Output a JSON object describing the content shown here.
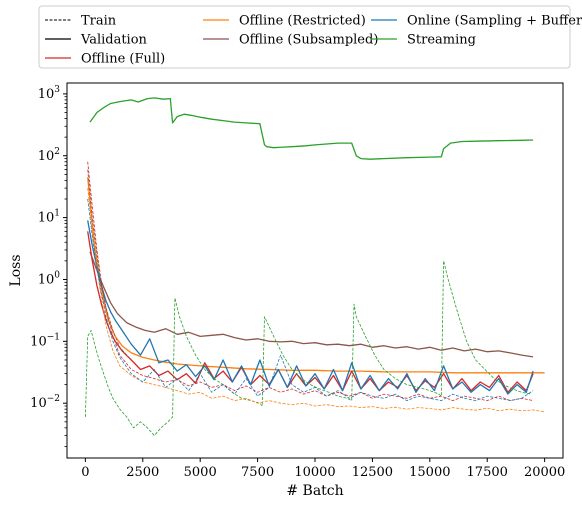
{
  "chart_data": {
    "type": "line",
    "title": "",
    "xlabel": "# Batch",
    "ylabel": "Loss",
    "xlim": [
      -800,
      20800
    ],
    "ylim": [
      0.0013,
      1500
    ],
    "yscale": "log",
    "x_ticks": [
      0,
      2500,
      5000,
      7500,
      10000,
      12500,
      15000,
      17500,
      20000
    ],
    "x_tick_labels": [
      "0",
      "2500",
      "5000",
      "7500",
      "10000",
      "12500",
      "15000",
      "17500",
      "20000"
    ],
    "y_ticks": [
      0.01,
      0.1,
      1,
      10,
      100,
      1000
    ],
    "y_tick_labels": [
      {
        "base": "10",
        "exp": "−2"
      },
      {
        "base": "10",
        "exp": "−1"
      },
      {
        "base": "10",
        "exp": "0"
      },
      {
        "base": "10",
        "exp": "1"
      },
      {
        "base": "10",
        "exp": "2"
      },
      {
        "base": "10",
        "exp": "3"
      }
    ],
    "grid": false,
    "legend_position": "top",
    "legend": [
      {
        "label": "Train",
        "color": "#000000",
        "style": "dashed"
      },
      {
        "label": "Validation",
        "color": "#000000",
        "style": "solid"
      },
      {
        "label": "Offline (Full)",
        "color": "#d62728",
        "style": "solid"
      },
      {
        "label": "Offline (Restricted)",
        "color": "#ff7f0e",
        "style": "solid"
      },
      {
        "label": "Offline (Subsampled)",
        "color": "#8c564b",
        "style": "solid"
      },
      {
        "label": "Streaming",
        "color": "#2ca02c",
        "style": "solid"
      },
      {
        "label": "Online (Sampling + Buffer)",
        "color": "#1f77b4",
        "style": "solid"
      }
    ],
    "series": [
      {
        "name": "Streaming",
        "kind": "validation",
        "color": "#2ca02c",
        "x": [
          200,
          500,
          800,
          1100,
          1500,
          2000,
          2300,
          2700,
          3000,
          3400,
          3700,
          3800,
          4000,
          4300,
          4600,
          5000,
          5500,
          6000,
          6500,
          7000,
          7600,
          7800,
          7900,
          8200,
          8600,
          9000,
          9600,
          10000,
          10500,
          11000,
          11600,
          11800,
          12000,
          12400,
          13000,
          14000,
          15000,
          15500,
          15600,
          15900,
          16400,
          17000,
          18000,
          19000,
          19500
        ],
        "y": [
          350,
          500,
          600,
          700,
          750,
          800,
          740,
          840,
          860,
          820,
          840,
          340,
          430,
          470,
          450,
          420,
          390,
          370,
          350,
          340,
          330,
          150,
          140,
          135,
          138,
          140,
          145,
          150,
          155,
          160,
          160,
          100,
          90,
          88,
          90,
          93,
          95,
          96,
          130,
          160,
          170,
          172,
          175,
          178,
          180
        ]
      },
      {
        "name": "Offline (Subsampled)",
        "kind": "validation",
        "color": "#8c564b",
        "x": [
          200,
          500,
          800,
          1100,
          1400,
          1800,
          2200,
          2600,
          3000,
          3500,
          4000,
          4500,
          5000,
          5500,
          6000,
          6500,
          7000,
          7500,
          8000,
          8500,
          9000,
          9500,
          10000,
          10500,
          11000,
          11500,
          12000,
          12500,
          13000,
          13500,
          14000,
          14500,
          15000,
          15500,
          16000,
          16500,
          17000,
          17500,
          18000,
          18500,
          19000,
          19500
        ],
        "y": [
          2.8,
          1.4,
          0.75,
          0.42,
          0.28,
          0.2,
          0.17,
          0.15,
          0.14,
          0.16,
          0.13,
          0.14,
          0.12,
          0.125,
          0.13,
          0.115,
          0.105,
          0.11,
          0.1,
          0.098,
          0.1,
          0.092,
          0.095,
          0.088,
          0.09,
          0.085,
          0.09,
          0.08,
          0.085,
          0.078,
          0.082,
          0.075,
          0.08,
          0.072,
          0.078,
          0.07,
          0.075,
          0.068,
          0.07,
          0.065,
          0.06,
          0.056
        ]
      },
      {
        "name": "Offline (Restricted)",
        "kind": "validation",
        "color": "#ff7f0e",
        "x": [
          100,
          250,
          400,
          600,
          800,
          1000,
          1300,
          1600,
          2000,
          2500,
          3000,
          3500,
          4000,
          5000,
          6000,
          7000,
          8000,
          9000,
          10000,
          11000,
          12000,
          13000,
          14000,
          15000,
          16000,
          17000,
          18000,
          19000,
          20000
        ],
        "y": [
          45,
          12,
          3.5,
          1.1,
          0.45,
          0.22,
          0.12,
          0.085,
          0.065,
          0.055,
          0.05,
          0.046,
          0.043,
          0.04,
          0.038,
          0.036,
          0.035,
          0.034,
          0.034,
          0.033,
          0.033,
          0.032,
          0.032,
          0.032,
          0.031,
          0.031,
          0.031,
          0.031,
          0.031
        ]
      },
      {
        "name": "Offline (Full)",
        "kind": "validation",
        "color": "#d62728",
        "x": [
          100,
          300,
          500,
          700,
          900,
          1100,
          1300,
          1600,
          2000,
          2400,
          2800,
          3200,
          3600,
          4000,
          4400,
          4800,
          5200,
          5600,
          6000,
          6400,
          6800,
          7200,
          7600,
          8000,
          8400,
          8800,
          9200,
          9600,
          10000,
          10400,
          10800,
          11200,
          11600,
          12000,
          12400,
          12800,
          13200,
          13600,
          14000,
          14400,
          14800,
          15200,
          15600,
          16000,
          16400,
          16800,
          17200,
          17600,
          18000,
          18400,
          18800,
          19200,
          19500
        ],
        "y": [
          6,
          2.0,
          0.8,
          0.4,
          0.22,
          0.14,
          0.1,
          0.07,
          0.05,
          0.035,
          0.04,
          0.028,
          0.033,
          0.024,
          0.03,
          0.021,
          0.045,
          0.025,
          0.033,
          0.022,
          0.038,
          0.02,
          0.028,
          0.02,
          0.035,
          0.018,
          0.03,
          0.019,
          0.026,
          0.017,
          0.028,
          0.016,
          0.033,
          0.017,
          0.025,
          0.016,
          0.022,
          0.018,
          0.028,
          0.016,
          0.023,
          0.018,
          0.03,
          0.017,
          0.025,
          0.016,
          0.022,
          0.018,
          0.028,
          0.015,
          0.022,
          0.016,
          0.03
        ]
      },
      {
        "name": "Online (Sampling + Buffer)",
        "kind": "validation",
        "color": "#1f77b4",
        "x": [
          100,
          300,
          500,
          700,
          900,
          1100,
          1300,
          1600,
          2000,
          2400,
          2800,
          3200,
          3600,
          4000,
          4400,
          4800,
          5200,
          5600,
          6000,
          6400,
          6800,
          7200,
          7600,
          8000,
          8400,
          8800,
          9200,
          9600,
          10000,
          10400,
          10800,
          11200,
          11600,
          12000,
          12400,
          12800,
          13200,
          13600,
          14000,
          14400,
          14800,
          15200,
          15600,
          16000,
          16400,
          16800,
          17200,
          17600,
          18000,
          18400,
          18800,
          19200,
          19500
        ],
        "y": [
          9,
          3.5,
          1.6,
          0.8,
          0.45,
          0.3,
          0.22,
          0.15,
          0.09,
          0.06,
          0.11,
          0.045,
          0.05,
          0.033,
          0.042,
          0.027,
          0.04,
          0.024,
          0.05,
          0.022,
          0.04,
          0.02,
          0.05,
          0.019,
          0.035,
          0.018,
          0.04,
          0.019,
          0.03,
          0.017,
          0.035,
          0.016,
          0.045,
          0.017,
          0.028,
          0.016,
          0.025,
          0.017,
          0.03,
          0.015,
          0.025,
          0.016,
          0.04,
          0.017,
          0.022,
          0.015,
          0.02,
          0.016,
          0.025,
          0.014,
          0.02,
          0.015,
          0.033
        ]
      },
      {
        "name": "Streaming",
        "kind": "train",
        "color": "#2ca02c",
        "x": [
          0,
          100,
          250,
          400,
          600,
          800,
          1000,
          1200,
          1500,
          1800,
          2100,
          2400,
          2700,
          3000,
          3300,
          3600,
          3800,
          3900,
          4100,
          4400,
          4800,
          5200,
          5600,
          6000,
          6400,
          6800,
          7200,
          7600,
          7700,
          7800,
          8200,
          8600,
          9000,
          9400,
          9800,
          10200,
          10600,
          11000,
          11400,
          11600,
          11700,
          11800,
          12200,
          12600,
          13000,
          13500,
          14000,
          14500,
          15000,
          15400,
          15500,
          15600,
          15800,
          16200,
          16600,
          17000,
          17400,
          17800,
          18200,
          18600,
          19000,
          19400
        ],
        "y": [
          0.006,
          0.12,
          0.15,
          0.09,
          0.05,
          0.03,
          0.018,
          0.012,
          0.008,
          0.006,
          0.004,
          0.005,
          0.004,
          0.003,
          0.004,
          0.005,
          0.006,
          0.5,
          0.25,
          0.12,
          0.06,
          0.035,
          0.025,
          0.02,
          0.015,
          0.012,
          0.011,
          0.01,
          0.009,
          0.25,
          0.12,
          0.06,
          0.035,
          0.025,
          0.02,
          0.017,
          0.015,
          0.013,
          0.012,
          0.011,
          0.4,
          0.25,
          0.12,
          0.06,
          0.035,
          0.025,
          0.02,
          0.018,
          0.016,
          0.014,
          0.013,
          2.0,
          1.0,
          0.3,
          0.1,
          0.05,
          0.035,
          0.025,
          0.02,
          0.017,
          0.015,
          0.014
        ]
      },
      {
        "name": "Offline (Restricted)",
        "kind": "train",
        "color": "#ff7f0e",
        "x": [
          100,
          300,
          500,
          700,
          900,
          1200,
          1500,
          2000,
          2500,
          3000,
          3500,
          4000,
          4500,
          5000,
          5500,
          6000,
          6500,
          7000,
          7500,
          8000,
          8500,
          9000,
          9500,
          10000,
          10500,
          11000,
          11500,
          12000,
          12500,
          13000,
          13500,
          14000,
          14500,
          15000,
          15500,
          16000,
          16500,
          17000,
          17500,
          18000,
          18500,
          19000,
          19500,
          20000
        ],
        "y": [
          30,
          6,
          1.5,
          0.5,
          0.18,
          0.07,
          0.04,
          0.028,
          0.022,
          0.02,
          0.018,
          0.016,
          0.014,
          0.015,
          0.012,
          0.013,
          0.011,
          0.012,
          0.01,
          0.011,
          0.01,
          0.0095,
          0.01,
          0.009,
          0.0095,
          0.0088,
          0.009,
          0.0085,
          0.0088,
          0.0082,
          0.0086,
          0.008,
          0.0085,
          0.0082,
          0.0078,
          0.0085,
          0.008,
          0.0077,
          0.0083,
          0.0076,
          0.008,
          0.0075,
          0.0078,
          0.0072
        ]
      },
      {
        "name": "Offline (Full)",
        "kind": "train",
        "color": "#d62728",
        "x": [
          100,
          300,
          500,
          700,
          900,
          1200,
          1500,
          2000,
          2500,
          3000,
          3500,
          4000,
          4500,
          5000,
          5500,
          6000,
          6500,
          7000,
          7500,
          8000,
          8500,
          9000,
          9500,
          10000,
          10500,
          11000,
          11500,
          12000,
          12500,
          13000,
          13500,
          14000,
          14500,
          15000,
          15500,
          16000,
          16500,
          17000,
          17500,
          18000,
          18500,
          19000,
          19500
        ],
        "y": [
          80,
          15,
          3,
          0.9,
          0.35,
          0.12,
          0.06,
          0.035,
          0.028,
          0.025,
          0.022,
          0.024,
          0.019,
          0.022,
          0.018,
          0.02,
          0.016,
          0.019,
          0.015,
          0.018,
          0.015,
          0.017,
          0.014,
          0.016,
          0.013,
          0.015,
          0.013,
          0.015,
          0.012,
          0.014,
          0.013,
          0.012,
          0.014,
          0.012,
          0.013,
          0.011,
          0.013,
          0.012,
          0.011,
          0.013,
          0.011,
          0.012,
          0.011
        ]
      },
      {
        "name": "Online (Sampling + Buffer)",
        "kind": "train",
        "color": "#1f77b4",
        "x": [
          100,
          300,
          500,
          700,
          900,
          1200,
          1500,
          2000,
          2500,
          3000,
          3500,
          4000,
          4500,
          5000,
          5500,
          6000,
          6500,
          7000,
          7500,
          8000,
          8500,
          9000,
          9500,
          10000,
          10500,
          11000,
          11500,
          12000,
          12500,
          13000,
          13500,
          14000,
          14500,
          15000,
          15500,
          16000,
          16500,
          17000,
          17500,
          18000,
          18500,
          19000,
          19500
        ],
        "y": [
          20,
          5,
          1.5,
          0.6,
          0.25,
          0.1,
          0.055,
          0.03,
          0.022,
          0.035,
          0.018,
          0.025,
          0.016,
          0.03,
          0.015,
          0.02,
          0.014,
          0.025,
          0.013,
          0.018,
          0.06,
          0.02,
          0.015,
          0.018,
          0.013,
          0.016,
          0.012,
          0.015,
          0.013,
          0.012,
          0.014,
          0.011,
          0.013,
          0.012,
          0.011,
          0.014,
          0.012,
          0.011,
          0.013,
          0.012,
          0.011,
          0.012,
          0.016
        ]
      },
      {
        "name": "Offline (Subsampled)",
        "kind": "train",
        "color": "#8c564b",
        "x": [
          100,
          300,
          500,
          700,
          900,
          1200,
          1500,
          2000
        ],
        "y": [
          60,
          10,
          2.5,
          0.8,
          0.35,
          0.15,
          0.08,
          0.05
        ]
      }
    ]
  }
}
